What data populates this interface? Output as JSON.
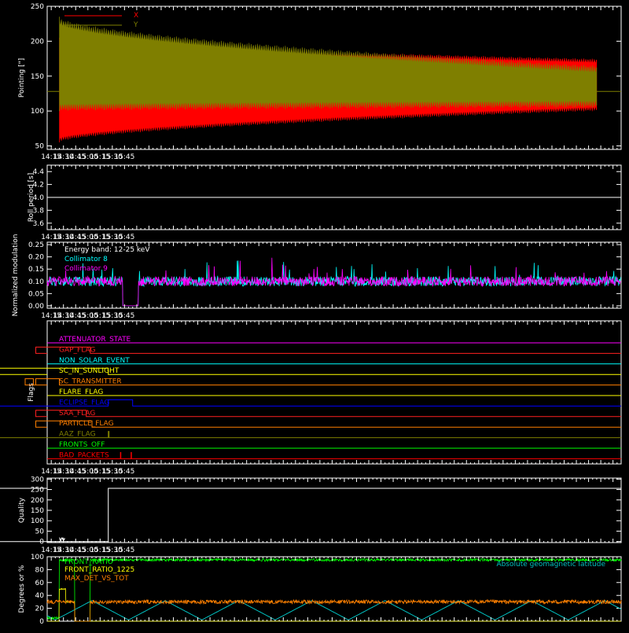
{
  "time_ticks": [
    "14:15",
    "14:30",
    "14:45",
    "15:00",
    "15:15",
    "15:30",
    "15:45"
  ],
  "time_range_min": [
    250,
    955
  ],
  "chart_data": [
    {
      "type": "area",
      "ylabel": "Pointing [\"]",
      "ylim": [
        45,
        250
      ],
      "yticks": [
        50,
        100,
        150,
        200,
        250
      ],
      "legend": "top-left",
      "series": [
        {
          "name": "X",
          "color": "#ff0000",
          "start": 265,
          "end": 925,
          "upper_start": 205,
          "upper_end": 175,
          "lower_start": 55,
          "lower_end": 100
        },
        {
          "name": "Y",
          "color": "#7f7f00",
          "start": 265,
          "end": 925,
          "upper_start": 235,
          "upper_end": 165,
          "lower_start": 100,
          "lower_end": 105
        }
      ],
      "baseline": {
        "value": 128,
        "color": "#7f7f00"
      }
    },
    {
      "type": "line",
      "ylabel": "Roll period [s]",
      "ylim": [
        3.5,
        4.5
      ],
      "yticks": [
        3.6,
        3.8,
        4.0,
        4.2,
        4.4
      ],
      "series": [
        {
          "name": "",
          "color": "#ffffff",
          "value": 4.0
        }
      ]
    },
    {
      "type": "line",
      "ylabel": "Normalized modulation",
      "ylim": [
        -0.01,
        0.26
      ],
      "yticks": [
        0.0,
        0.05,
        0.1,
        0.15,
        0.2,
        0.25
      ],
      "annotation": "Energy band: 12-25 keV",
      "legend": "top-left",
      "gap": [
        835,
        852
      ],
      "series": [
        {
          "name": "Collimator 8",
          "color": "#00ffff",
          "level": 0.1
        },
        {
          "name": "Collimator 9",
          "color": "#ff00ff",
          "level": 0.1
        }
      ]
    },
    {
      "type": "line",
      "ylabel": "Flags",
      "flags": [
        {
          "name": "ATTENUATOR_STATE",
          "color": "#ff00ff",
          "steps": []
        },
        {
          "name": "GAP_FLAG",
          "color": "#ff2020",
          "steps": [
            [
              836,
              903
            ]
          ]
        },
        {
          "name": "NON_SOLAR_EVENT",
          "color": "#00ffff",
          "steps": []
        },
        {
          "name": "SC_IN_SUNLIGHT",
          "color": "#ffff00",
          "steps": [
            [
              265,
              925
            ]
          ]
        },
        {
          "name": "SC_TRANSMITTER",
          "color": "#ff7f00",
          "steps": [
            [
              823,
              833
            ],
            [
              836,
              865
            ]
          ]
        },
        {
          "name": "FLARE_FLAG",
          "color": "#ffff00",
          "steps": []
        },
        {
          "name": "ECLIPSE_FLAG",
          "color": "#0000ff",
          "steps": [
            [
              250,
              265
            ],
            [
              925,
              955
            ]
          ]
        },
        {
          "name": "SAA_FLAG",
          "color": "#ff2020",
          "steps": [
            [
              836,
              898
            ]
          ]
        },
        {
          "name": "PARTICLE_FLAG",
          "color": "#ff7f00",
          "steps": [
            [
              836,
              905
            ]
          ]
        },
        {
          "name": "AAZ_FLAG",
          "color": "#7f7f00",
          "steps": [
            [
              265,
              266
            ],
            [
              925,
              926
            ]
          ]
        },
        {
          "name": "FRONTS_OFF",
          "color": "#00ff00",
          "steps": []
        },
        {
          "name": "BAD_PACKETS",
          "color": "#ff0000",
          "steps": [
            [
              940,
              940.5
            ],
            [
              953,
              953.5
            ]
          ]
        }
      ]
    },
    {
      "type": "line",
      "ylabel": "Quality",
      "ylim": [
        -5,
        305
      ],
      "yticks": [
        0,
        50,
        100,
        150,
        200,
        250,
        300
      ],
      "series": [
        {
          "name": "",
          "color": "#ffffff",
          "segments": [
            [
              250,
              265,
              256
            ],
            [
              265,
              925,
              0
            ],
            [
              925,
              955,
              256
            ]
          ]
        }
      ]
    },
    {
      "type": "line",
      "ylabel": "Degrees or %",
      "ylim": [
        0,
        100
      ],
      "yticks": [
        0,
        20,
        40,
        60,
        80,
        100
      ],
      "legend": "top-left",
      "right_label": "Absolute geomagnetic latitude",
      "right_label_color": "#00c0c0",
      "series": [
        {
          "name": "FRONT_RATIO",
          "color": "#00ff00"
        },
        {
          "name": "FRONT_RATIO_1225",
          "color": "#ffff00"
        },
        {
          "name": "MAX_DET_VS_TOT",
          "color": "#ff8000"
        }
      ]
    }
  ]
}
